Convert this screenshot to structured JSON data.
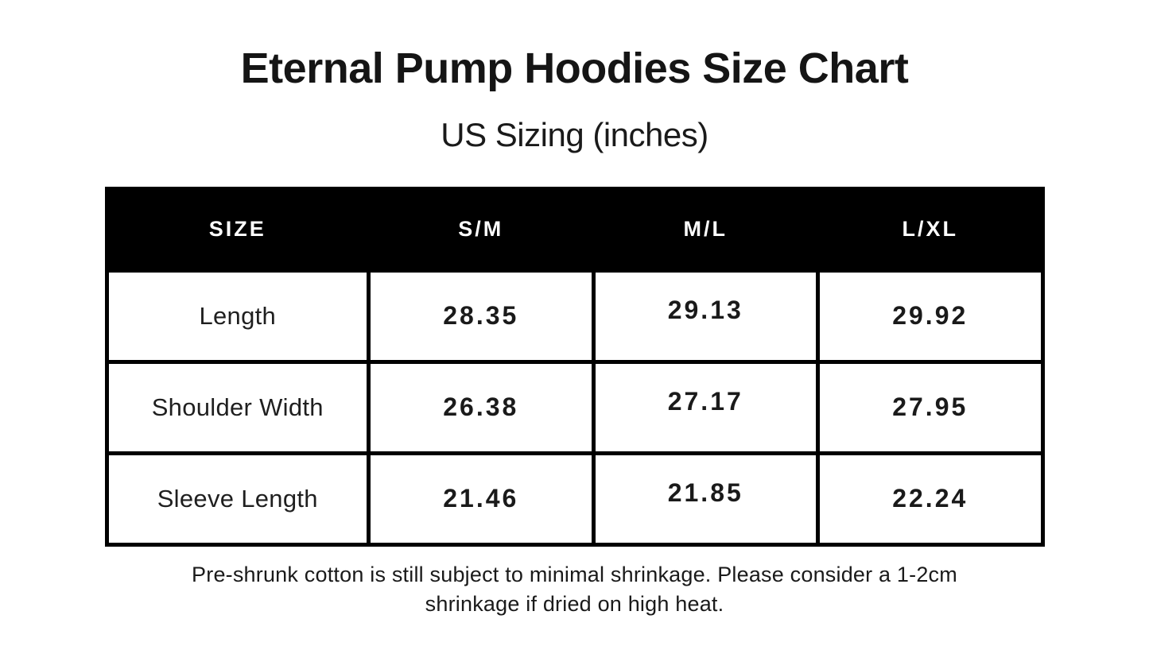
{
  "page": {
    "title": "Eternal Pump Hoodies Size Chart",
    "subtitle": "US Sizing (inches)",
    "note_line1": "Pre-shrunk cotton is still subject to minimal shrinkage. Please consider a 1-2cm",
    "note_line2": "shrinkage if dried on high heat."
  },
  "colors": {
    "background": "#ffffff",
    "header_bg": "#000000",
    "header_text": "#ffffff",
    "border": "#000000",
    "text": "#1a1a1a"
  },
  "chart_data": {
    "type": "table",
    "title": "Eternal Pump Hoodies Size Chart",
    "subtitle": "US Sizing (inches)",
    "units": "inches",
    "columns": [
      "SIZE",
      "S/M",
      "M/L",
      "L/XL"
    ],
    "rows": [
      {
        "label": "Length",
        "values": [
          "28.35",
          "29.13",
          "29.92"
        ]
      },
      {
        "label": "Shoulder Width",
        "values": [
          "26.38",
          "27.17",
          "27.95"
        ]
      },
      {
        "label": "Sleeve Length",
        "values": [
          "21.46",
          "21.85",
          "22.24"
        ]
      }
    ],
    "note": "Pre-shrunk cotton is still subject to minimal shrinkage. Please consider a 1-2cm shrinkage if dried on high heat."
  }
}
